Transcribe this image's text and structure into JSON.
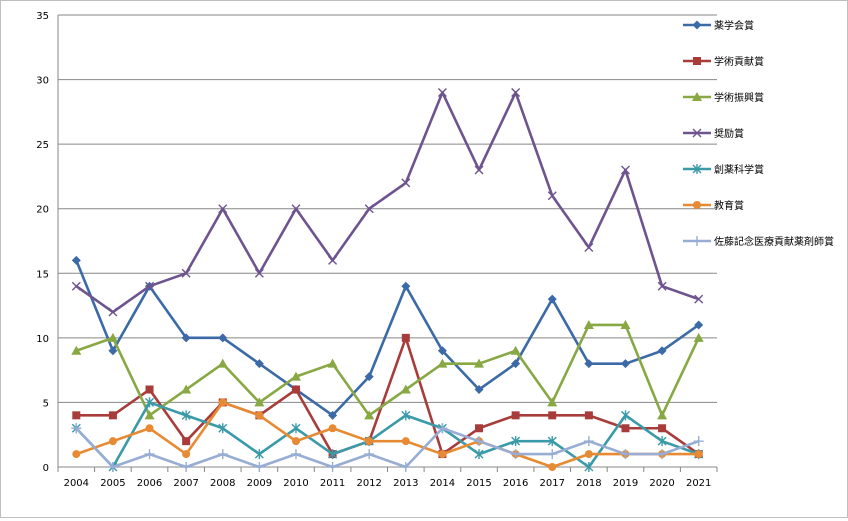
{
  "chart_data": {
    "type": "line",
    "title": "",
    "xlabel": "",
    "ylabel": "",
    "ylim": [
      0,
      35
    ],
    "yticks": [
      0,
      5,
      10,
      15,
      20,
      25,
      30,
      35
    ],
    "grid": true,
    "legend_position": "right",
    "categories": [
      "2004",
      "2005",
      "2006",
      "2007",
      "2008",
      "2009",
      "2010",
      "2011",
      "2012",
      "2013",
      "2014",
      "2015",
      "2016",
      "2017",
      "2018",
      "2019",
      "2020",
      "2021"
    ],
    "series": [
      {
        "name": "薬学会賞",
        "color": "#3b6aa7",
        "marker": "diamond",
        "values": [
          16,
          9,
          14,
          10,
          10,
          8,
          6,
          4,
          7,
          14,
          9,
          6,
          8,
          13,
          8,
          8,
          9,
          11
        ]
      },
      {
        "name": "学術貢献賞",
        "color": "#a83c3a",
        "marker": "square",
        "values": [
          4,
          4,
          6,
          2,
          5,
          4,
          6,
          1,
          2,
          10,
          1,
          3,
          4,
          4,
          4,
          3,
          3,
          1
        ]
      },
      {
        "name": "学術振興賞",
        "color": "#88a843",
        "marker": "triangle",
        "values": [
          9,
          10,
          4,
          6,
          8,
          5,
          7,
          8,
          4,
          6,
          8,
          8,
          9,
          5,
          11,
          11,
          4,
          10
        ]
      },
      {
        "name": "奨励賞",
        "color": "#6e548f",
        "marker": "x",
        "values": [
          14,
          12,
          14,
          15,
          20,
          15,
          20,
          16,
          20,
          22,
          29,
          23,
          29,
          21,
          17,
          23,
          14,
          13
        ]
      },
      {
        "name": "創薬科学賞",
        "color": "#3b9aa8",
        "marker": "star",
        "values": [
          3,
          0,
          5,
          4,
          3,
          1,
          3,
          1,
          2,
          4,
          3,
          1,
          2,
          2,
          0,
          4,
          2,
          1
        ]
      },
      {
        "name": "教育賞",
        "color": "#e68a33",
        "marker": "circle",
        "values": [
          1,
          2,
          3,
          1,
          5,
          4,
          2,
          3,
          2,
          2,
          1,
          2,
          1,
          0,
          1,
          1,
          1,
          1
        ]
      },
      {
        "name": "佐藤記念医療貢献薬剤師賞",
        "color": "#98add3",
        "marker": "plus",
        "values": [
          3,
          0,
          1,
          0,
          1,
          0,
          1,
          0,
          1,
          0,
          3,
          2,
          1,
          1,
          2,
          1,
          1,
          2
        ]
      }
    ]
  }
}
